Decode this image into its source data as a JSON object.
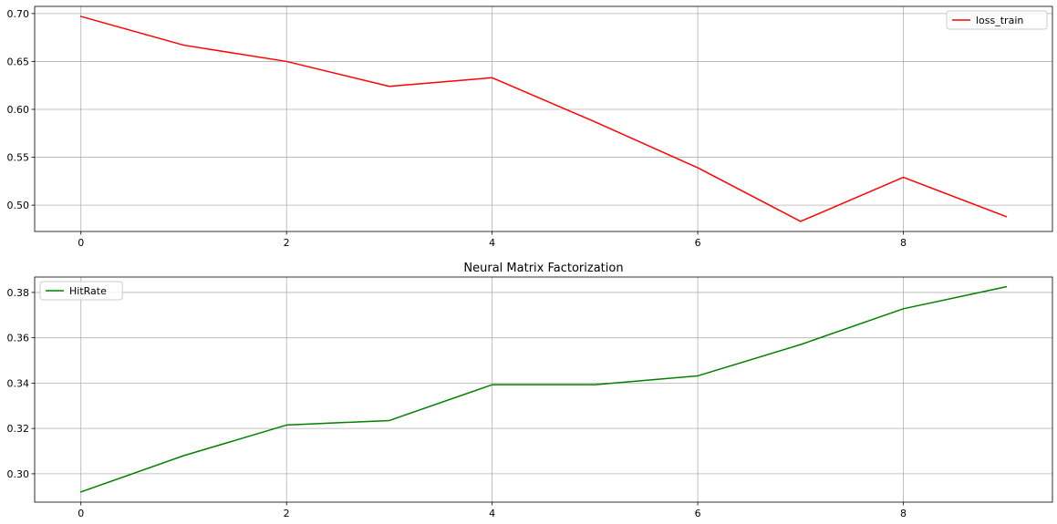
{
  "chart_data": [
    {
      "type": "line",
      "title": "",
      "xlabel": "",
      "ylabel": "",
      "x": [
        0,
        1,
        2,
        3,
        4,
        5,
        6,
        7,
        8,
        9
      ],
      "xticks": [
        "0",
        "2",
        "4",
        "6",
        "8"
      ],
      "xtick_values": [
        0,
        2,
        4,
        6,
        8
      ],
      "yticks": [
        "0.50",
        "0.55",
        "0.60",
        "0.65",
        "0.70"
      ],
      "ytick_values": [
        0.5,
        0.55,
        0.6,
        0.65,
        0.7
      ],
      "xlim": [
        -0.45,
        9.45
      ],
      "ylim": [
        0.4725,
        0.7075
      ],
      "grid": true,
      "legend_position": "top-right",
      "series": [
        {
          "name": "loss_train",
          "color": "#ff0000",
          "values": [
            0.697,
            0.667,
            0.65,
            0.624,
            0.633,
            0.587,
            0.539,
            0.483,
            0.529,
            0.488
          ]
        }
      ]
    },
    {
      "type": "line",
      "title": "Neural Matrix Factorization",
      "xlabel": "",
      "ylabel": "",
      "x": [
        0,
        1,
        2,
        3,
        4,
        5,
        6,
        7,
        8,
        9
      ],
      "xticks": [
        "0",
        "2",
        "4",
        "6",
        "8"
      ],
      "xtick_values": [
        0,
        2,
        4,
        6,
        8
      ],
      "yticks": [
        "0.30",
        "0.32",
        "0.34",
        "0.36",
        "0.38"
      ],
      "ytick_values": [
        0.3,
        0.32,
        0.34,
        0.36,
        0.38
      ],
      "xlim": [
        -0.45,
        9.45
      ],
      "ylim": [
        0.2875,
        0.3868
      ],
      "grid": true,
      "legend_position": "top-left",
      "series": [
        {
          "name": "HitRate",
          "color": "#008000",
          "values": [
            0.292,
            0.308,
            0.3215,
            0.3235,
            0.3393,
            0.3393,
            0.3432,
            0.357,
            0.3728,
            0.3825
          ]
        }
      ]
    }
  ]
}
